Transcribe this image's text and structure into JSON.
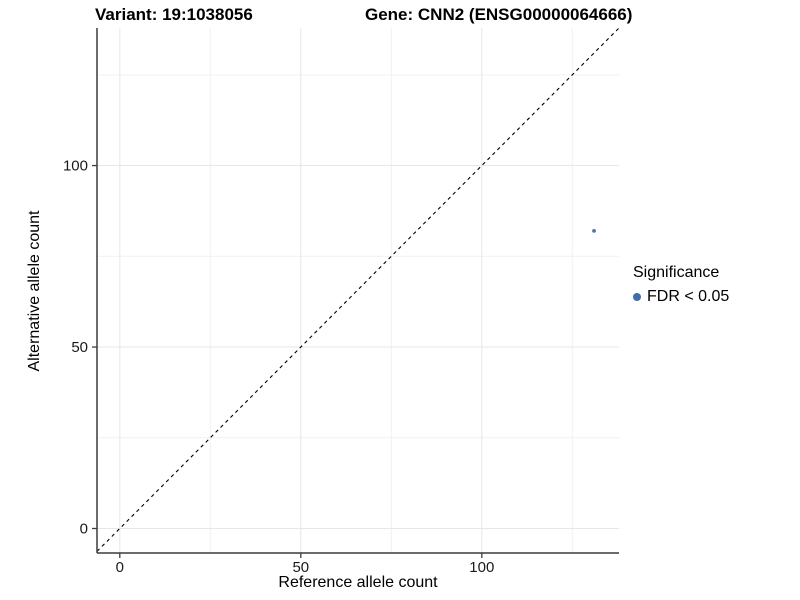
{
  "title": {
    "variant": "Variant: 19:1038056",
    "gene": "Gene: CNN2 (ENSG00000064666)"
  },
  "chart_data": {
    "type": "scatter",
    "title": "Variant: 19:1038056   Gene: CNN2 (ENSG00000064666)",
    "xlabel": "Reference allele count",
    "ylabel": "Alternative allele count",
    "xlim": [
      -6.3,
      137.9
    ],
    "ylim": [
      -6.75,
      137.9
    ],
    "x_major_ticks": [
      0,
      50,
      100
    ],
    "x_minor_ticks": [
      25,
      75,
      125
    ],
    "y_major_ticks": [
      0,
      50,
      100
    ],
    "y_minor_ticks": [
      25,
      75,
      125
    ],
    "grid": true,
    "series": [
      {
        "name": "FDR < 0.05",
        "points": [
          {
            "x": 131,
            "y": 82
          }
        ]
      }
    ],
    "identity_line": {
      "slope": 1,
      "intercept": 0,
      "style": "dashed"
    },
    "legend": {
      "position": "right",
      "title": "Significance",
      "entries": [
        {
          "label": "FDR < 0.05",
          "color": "#3d70aa"
        }
      ]
    }
  },
  "colors": {
    "point": "#4a78ab",
    "legend_dot": "#3d70aa",
    "axis_line": "#3c3c3c",
    "tick_label": "#1a1a1a",
    "grid_major": "#e7e7e7",
    "grid_minor": "#f1f1f1",
    "identity_line": "#000000",
    "background": "#ffffff"
  }
}
